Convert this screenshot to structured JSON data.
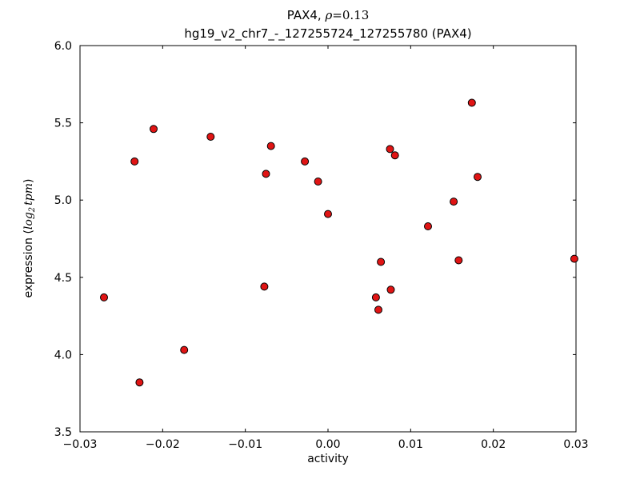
{
  "title": {
    "line1_prefix": "PAX4, ",
    "line1_rho": "ρ",
    "line1_eq": "=0.13",
    "line2": "hg19_v2_chr7_-_127255724_127255780 (PAX4)"
  },
  "axes": {
    "xlabel": "activity",
    "ylabel_pre": "expression (",
    "ylabel_log": "log",
    "ylabel_sub": "2",
    "ylabel_tpm": "tpm",
    "ylabel_post": ")"
  },
  "chart_data": {
    "type": "scatter",
    "title": "PAX4, ρ=0.13",
    "subtitle": "hg19_v2_chr7_-_127255724_127255780 (PAX4)",
    "xlabel": "activity",
    "ylabel": "expression (log2 tpm)",
    "xlim": [
      -0.03,
      0.03
    ],
    "ylim": [
      3.5,
      6.0
    ],
    "grid": false,
    "legend": "none",
    "marker": "circle",
    "marker_color": "#e01414",
    "marker_edge_color": "#000000",
    "xtick_values": [
      -0.03,
      -0.02,
      -0.01,
      0.0,
      0.01,
      0.02,
      0.03
    ],
    "xtick_labels": [
      "−0.03",
      "−0.02",
      "−0.01",
      "0.00",
      "0.01",
      "0.02",
      "0.03"
    ],
    "ytick_values": [
      3.5,
      4.0,
      4.5,
      5.0,
      5.5,
      6.0
    ],
    "ytick_labels": [
      "3.5",
      "4.0",
      "4.5",
      "5.0",
      "5.5",
      "6.0"
    ],
    "points": [
      [
        -0.0271,
        4.37
      ],
      [
        -0.0234,
        5.25
      ],
      [
        -0.0228,
        3.82
      ],
      [
        -0.0211,
        5.46
      ],
      [
        -0.0174,
        4.03
      ],
      [
        -0.0142,
        5.41
      ],
      [
        -0.0077,
        4.44
      ],
      [
        -0.0075,
        5.17
      ],
      [
        -0.0069,
        5.35
      ],
      [
        -0.0028,
        5.25
      ],
      [
        -0.0012,
        5.12
      ],
      [
        0.0,
        4.91
      ],
      [
        0.0058,
        4.37
      ],
      [
        0.0061,
        4.29
      ],
      [
        0.0064,
        4.6
      ],
      [
        0.0076,
        4.42
      ],
      [
        0.0075,
        5.33
      ],
      [
        0.0081,
        5.29
      ],
      [
        0.0121,
        4.83
      ],
      [
        0.0152,
        4.99
      ],
      [
        0.0158,
        4.61
      ],
      [
        0.0174,
        5.63
      ],
      [
        0.0181,
        5.15
      ],
      [
        0.0298,
        4.62
      ]
    ]
  }
}
